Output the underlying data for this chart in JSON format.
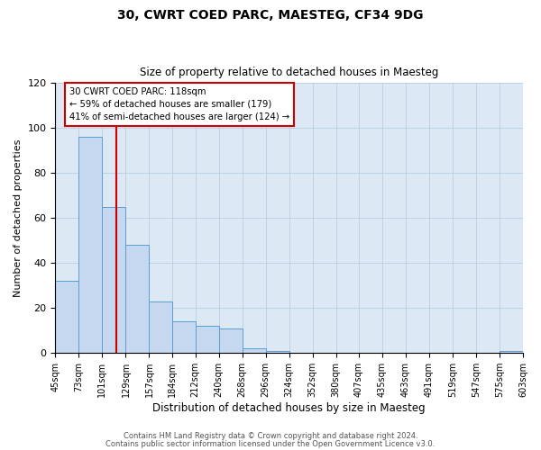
{
  "title": "30, CWRT COED PARC, MAESTEG, CF34 9DG",
  "subtitle": "Size of property relative to detached houses in Maesteg",
  "xlabel": "Distribution of detached houses by size in Maesteg",
  "ylabel": "Number of detached properties",
  "footer_line1": "Contains HM Land Registry data © Crown copyright and database right 2024.",
  "footer_line2": "Contains public sector information licensed under the Open Government Licence v3.0.",
  "bin_edges": [
    45,
    73,
    101,
    129,
    157,
    184,
    212,
    240,
    268,
    296,
    324,
    352,
    380,
    407,
    435,
    463,
    491,
    519,
    547,
    575,
    603
  ],
  "bin_labels": [
    "45sqm",
    "73sqm",
    "101sqm",
    "129sqm",
    "157sqm",
    "184sqm",
    "212sqm",
    "240sqm",
    "268sqm",
    "296sqm",
    "324sqm",
    "352sqm",
    "380sqm",
    "407sqm",
    "435sqm",
    "463sqm",
    "491sqm",
    "519sqm",
    "547sqm",
    "575sqm",
    "603sqm"
  ],
  "counts": [
    32,
    96,
    65,
    48,
    23,
    14,
    12,
    11,
    2,
    1,
    0,
    0,
    0,
    0,
    0,
    0,
    0,
    0,
    0,
    1
  ],
  "bar_color": "#c5d8f0",
  "bar_edge_color": "#5a9fd4",
  "property_value": 118,
  "property_label": "30 CWRT COED PARC: 118sqm",
  "pct_smaller": 59,
  "n_smaller": 179,
  "pct_larger_semi": 41,
  "n_larger_semi": 124,
  "vline_color": "#cc0000",
  "annotation_box_edge_color": "#cc0000",
  "ylim": [
    0,
    120
  ],
  "yticks": [
    0,
    20,
    40,
    60,
    80,
    100,
    120
  ],
  "background_color": "#ffffff",
  "plot_bg_color": "#dce9f5",
  "grid_color": "#b8cfe0"
}
